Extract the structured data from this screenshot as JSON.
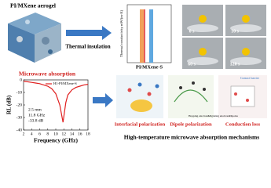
{
  "aerogel": {
    "label": "PI/MXene aerogel"
  },
  "thermal": {
    "arrow_label": "Thermal insulation",
    "y_label": "Thermal conductivity mW/(m·K)",
    "sample": "PI/MXene-S",
    "photo_times": [
      "0 s",
      "10 s",
      "60 s",
      "120 s"
    ]
  },
  "microwave": {
    "label": "Microwave absorption"
  },
  "chart_data": {
    "type": "line",
    "x_label": "Frequency (GHz)",
    "y_label": "RL (dB)",
    "x": [
      2,
      3,
      4,
      5,
      6,
      7,
      8,
      9,
      10,
      11,
      11.8,
      12.5,
      13,
      14,
      15,
      16,
      17,
      18
    ],
    "series": [
      {
        "name": "H1-PI/MXene-S",
        "color": "#e02020",
        "values": [
          -1,
          -1.5,
          -2,
          -2.5,
          -3,
          -4,
          -5,
          -7,
          -11,
          -20,
          -33.8,
          -18,
          -12,
          -8,
          -6,
          -5,
          -4,
          -3.5
        ]
      }
    ],
    "xlim": [
      2,
      18
    ],
    "ylim": [
      -40,
      0
    ],
    "xticks": [
      2,
      4,
      6,
      8,
      10,
      12,
      14,
      16,
      18
    ],
    "yticks": [
      0,
      -10,
      -20,
      -30,
      -40
    ],
    "annotations": [
      "2.5 mm",
      "11.8 GHz",
      "-33.8 dB"
    ]
  },
  "mechanisms": {
    "title": "High-temperature microwave absorption mechanisms",
    "panels": [
      "Interfacial polarization",
      "Dipole polarization",
      "Conduction loss"
    ],
    "contact_barrier": "Contact barrier",
    "legend": [
      "Hopping electrons",
      "Migrating electrons",
      "Dipoles"
    ]
  }
}
